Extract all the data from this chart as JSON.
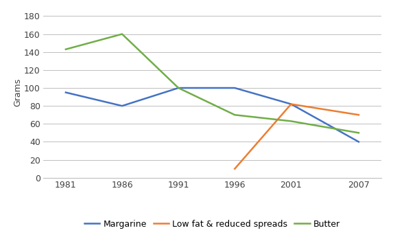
{
  "years": [
    1981,
    1986,
    1991,
    1996,
    2001,
    2007
  ],
  "margarine": [
    95,
    80,
    100,
    100,
    82,
    40
  ],
  "low_fat_years": [
    1996,
    2001,
    2007
  ],
  "low_fat": [
    10,
    82,
    70
  ],
  "butter": [
    143,
    160,
    100,
    70,
    63,
    50
  ],
  "margarine_color": "#4472C4",
  "low_fat_color": "#ED7D31",
  "butter_color": "#70AD47",
  "ylabel": "Grams",
  "ylim": [
    0,
    190
  ],
  "yticks": [
    0,
    20,
    40,
    60,
    80,
    100,
    120,
    140,
    160,
    180
  ],
  "xlim": [
    1979,
    2009
  ],
  "legend_labels": [
    "Margarine",
    "Low fat & reduced spreads",
    "Butter"
  ],
  "background_color": "#ffffff",
  "grid_color": "#bfbfbf",
  "tick_fontsize": 9,
  "label_fontsize": 9,
  "legend_fontsize": 9,
  "linewidth": 1.8
}
